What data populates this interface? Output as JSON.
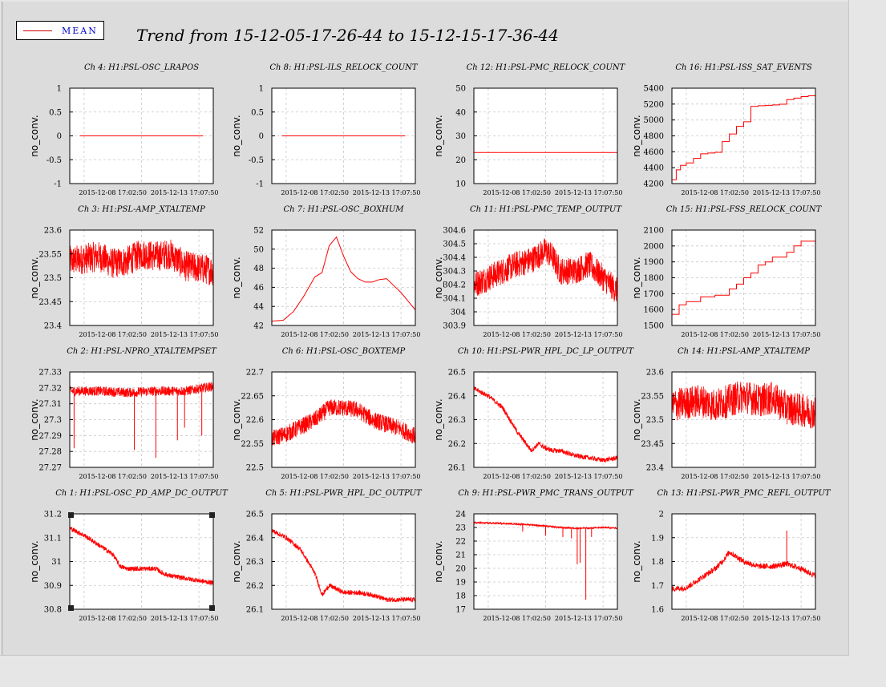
{
  "title": "Trend from 15-12-05-17-26-44 to 15-12-15-17-36-44",
  "legend": {
    "label": "MEAN"
  },
  "colors": {
    "series": "#ff0000",
    "grid": "#c8c8c8",
    "frame": "#000000"
  },
  "chart_data": [
    {
      "type": "line",
      "title": "Ch 4: H1:PSL-OSC_LRAPOS",
      "ylabel": "no_conv.",
      "ylim": [
        -1,
        1
      ],
      "yticks": [
        "1",
        "0.5",
        "0",
        "-0.5",
        "-1"
      ],
      "xticks": [
        "2015-12-08 17:02:50",
        "2015-12-13 17:07:50"
      ],
      "series": [
        {
          "name": "MEAN",
          "x": [
            0.07,
            0.93
          ],
          "y": [
            0,
            0
          ]
        }
      ],
      "style": "flat"
    },
    {
      "type": "line",
      "title": "Ch 8: H1:PSL-ILS_RELOCK_COUNT",
      "ylabel": "no_conv.",
      "ylim": [
        -1,
        1
      ],
      "yticks": [
        "1",
        "0.5",
        "0",
        "-0.5",
        "-1"
      ],
      "xticks": [
        "2015-12-08 17:02:50",
        "2015-12-13 17:07:50"
      ],
      "series": [
        {
          "name": "MEAN",
          "x": [
            0.07,
            0.93
          ],
          "y": [
            0,
            0
          ]
        }
      ],
      "style": "flat"
    },
    {
      "type": "line",
      "title": "Ch 12: H1:PSL-PMC_RELOCK_COUNT",
      "ylabel": "no_conv.",
      "ylim": [
        10,
        50
      ],
      "yticks": [
        "50",
        "40",
        "30",
        "20",
        "10"
      ],
      "xticks": [
        "2015-12-08 17:02:50",
        "2015-12-13 17:07:50"
      ],
      "series": [
        {
          "name": "MEAN",
          "x": [
            0,
            1
          ],
          "y": [
            23,
            23
          ]
        }
      ],
      "style": "flat"
    },
    {
      "type": "line",
      "title": "Ch 16: H1:PSL-ISS_SAT_EVENTS",
      "ylabel": "no_conv.",
      "ylim": [
        4150,
        5400
      ],
      "yticks": [
        "5400",
        "5200",
        "5000",
        "4800",
        "4600",
        "4400",
        "4200"
      ],
      "xticks": [
        "2015-12-08 17:02:50",
        "2015-12-13 17:07:50"
      ],
      "series": [
        {
          "name": "MEAN",
          "x": [
            0,
            0.03,
            0.06,
            0.1,
            0.15,
            0.2,
            0.25,
            0.3,
            0.35,
            0.4,
            0.45,
            0.5,
            0.55,
            0.6,
            0.65,
            0.7,
            0.75,
            0.8,
            0.85,
            0.9,
            0.95,
            1
          ],
          "y": [
            4200,
            4330,
            4390,
            4420,
            4480,
            4540,
            4550,
            4560,
            4700,
            4800,
            4900,
            4960,
            5160,
            5170,
            5175,
            5180,
            5190,
            5250,
            5270,
            5290,
            5300,
            5320
          ]
        }
      ],
      "style": "step"
    },
    {
      "type": "line",
      "title": "Ch 3: H1:PSL-AMP_XTALTEMP",
      "ylabel": "no_conv.",
      "ylim": [
        23.4,
        23.6
      ],
      "yticks": [
        "23.6",
        "23.55",
        "23.5",
        "23.45",
        "23.4"
      ],
      "xticks": [
        "2015-12-08 17:02:50",
        "2015-12-13 17:07:50"
      ],
      "series": [
        {
          "name": "MEAN",
          "x": [
            0,
            0.1,
            0.2,
            0.3,
            0.4,
            0.5,
            0.6,
            0.7,
            0.8,
            0.9,
            1
          ],
          "y": [
            23.535,
            23.54,
            23.545,
            23.53,
            23.535,
            23.55,
            23.545,
            23.55,
            23.525,
            23.52,
            23.515
          ],
          "noise": 0.032
        }
      ],
      "style": "noisy"
    },
    {
      "type": "line",
      "title": "Ch 7: H1:PSL-OSC_BOXHUM",
      "ylabel": "no_conv.",
      "ylim": [
        41,
        52
      ],
      "yticks": [
        "52",
        "50",
        "48",
        "46",
        "44",
        "42"
      ],
      "xticks": [
        "2015-12-08 17:02:50",
        "2015-12-13 17:07:50"
      ],
      "series": [
        {
          "name": "MEAN",
          "x": [
            0,
            0.08,
            0.15,
            0.22,
            0.3,
            0.35,
            0.4,
            0.45,
            0.5,
            0.55,
            0.6,
            0.65,
            0.7,
            0.75,
            0.8,
            0.85,
            0.9,
            0.95,
            1
          ],
          "y": [
            41.5,
            41.6,
            42.6,
            44.3,
            46.6,
            47.1,
            50.2,
            51.2,
            49.0,
            47.2,
            46.4,
            46.0,
            46.0,
            46.3,
            46.4,
            45.6,
            44.8,
            43.8,
            42.8
          ]
        }
      ],
      "style": "smooth"
    },
    {
      "type": "line",
      "title": "Ch 11: H1:PSL-PMC_TEMP_OUTPUT",
      "ylabel": "no_conv.",
      "ylim": [
        303.9,
        304.6
      ],
      "yticks": [
        "304.6",
        "304.5",
        "304.4",
        "304.3",
        "304.2",
        "304.1",
        "304",
        "303.9"
      ],
      "xticks": [
        "2015-12-08 17:02:50",
        "2015-12-13 17:07:50"
      ],
      "series": [
        {
          "name": "MEAN",
          "x": [
            0,
            0.1,
            0.2,
            0.3,
            0.4,
            0.5,
            0.55,
            0.6,
            0.7,
            0.8,
            0.9,
            1
          ],
          "y": [
            304.2,
            304.25,
            304.3,
            304.35,
            304.38,
            304.45,
            304.4,
            304.3,
            304.3,
            304.35,
            304.25,
            304.15
          ],
          "noise": 0.1
        }
      ],
      "style": "noisy"
    },
    {
      "type": "line",
      "title": "Ch 15: H1:PSL-FSS_RELOCK_COUNT",
      "ylabel": "no_conv.",
      "ylim": [
        1500,
        2100
      ],
      "yticks": [
        "2100",
        "2000",
        "1900",
        "1800",
        "1700",
        "1600",
        "1500"
      ],
      "xticks": [
        "2015-12-08 17:02:50",
        "2015-12-13 17:07:50"
      ],
      "series": [
        {
          "name": "MEAN",
          "x": [
            0,
            0.05,
            0.1,
            0.2,
            0.3,
            0.4,
            0.45,
            0.5,
            0.55,
            0.6,
            0.65,
            0.7,
            0.8,
            0.85,
            0.9,
            1
          ],
          "y": [
            1570,
            1630,
            1650,
            1680,
            1690,
            1730,
            1760,
            1800,
            1830,
            1880,
            1900,
            1930,
            1960,
            2000,
            2030,
            2045
          ]
        }
      ],
      "style": "step"
    },
    {
      "type": "line",
      "title": "Ch 2: H1:PSL-NPRO_XTALTEMPSET",
      "ylabel": "no_conv.",
      "ylim": [
        27.27,
        27.33
      ],
      "yticks": [
        "27.33",
        "27.32",
        "27.31",
        "27.3",
        "27.29",
        "27.28",
        "27.27"
      ],
      "xticks": [
        "2015-12-08 17:02:50",
        "2015-12-13 17:07:50"
      ],
      "series": [
        {
          "name": "MEAN",
          "x": [
            0,
            0.2,
            0.4,
            0.6,
            0.8,
            1
          ],
          "y": [
            27.318,
            27.318,
            27.317,
            27.318,
            27.318,
            27.321
          ],
          "noise": 0.003,
          "spikes": [
            [
              0.03,
              27.282
            ],
            [
              0.45,
              27.281
            ],
            [
              0.6,
              27.276
            ],
            [
              0.75,
              27.287
            ],
            [
              0.8,
              27.295
            ],
            [
              0.92,
              27.29
            ]
          ]
        }
      ],
      "style": "noisy"
    },
    {
      "type": "line",
      "title": "Ch 6: H1:PSL-OSC_BOXTEMP",
      "ylabel": "no_conv.",
      "ylim": [
        22.5,
        22.7
      ],
      "yticks": [
        "22.7",
        "22.65",
        "22.6",
        "22.55",
        "22.5"
      ],
      "xticks": [
        "2015-12-08 17:02:50",
        "2015-12-13 17:07:50"
      ],
      "series": [
        {
          "name": "MEAN",
          "x": [
            0,
            0.1,
            0.2,
            0.3,
            0.4,
            0.5,
            0.6,
            0.7,
            0.8,
            0.9,
            1
          ],
          "y": [
            22.56,
            22.57,
            22.585,
            22.6,
            22.625,
            22.625,
            22.62,
            22.6,
            22.59,
            22.58,
            22.565
          ],
          "noise": 0.018
        }
      ],
      "style": "noisy"
    },
    {
      "type": "line",
      "title": "Ch 10: H1:PSL-PWR_HPL_DC_LP_OUTPUT",
      "ylabel": "no_conv.",
      "ylim": [
        26.1,
        26.5
      ],
      "yticks": [
        "26.5",
        "26.4",
        "26.3",
        "26.2",
        "26.1"
      ],
      "xticks": [
        "2015-12-08 17:02:50",
        "2015-12-13 17:07:50"
      ],
      "series": [
        {
          "name": "MEAN",
          "x": [
            0,
            0.1,
            0.2,
            0.3,
            0.4,
            0.45,
            0.5,
            0.55,
            0.6,
            0.7,
            0.8,
            0.9,
            1
          ],
          "y": [
            26.43,
            26.4,
            26.35,
            26.25,
            26.17,
            26.2,
            26.18,
            26.17,
            26.17,
            26.15,
            26.14,
            26.13,
            26.14
          ],
          "noise": 0.01
        }
      ],
      "style": "noisy"
    },
    {
      "type": "line",
      "title": "Ch 14: H1:PSL-AMP_XTALTEMP",
      "ylabel": "no_conv.",
      "ylim": [
        23.4,
        23.6
      ],
      "yticks": [
        "23.6",
        "23.55",
        "23.5",
        "23.45",
        "23.4"
      ],
      "xticks": [
        "2015-12-08 17:02:50",
        "2015-12-13 17:07:50"
      ],
      "series": [
        {
          "name": "MEAN",
          "x": [
            0,
            0.1,
            0.2,
            0.3,
            0.4,
            0.5,
            0.6,
            0.7,
            0.8,
            0.9,
            1
          ],
          "y": [
            23.53,
            23.535,
            23.54,
            23.53,
            23.54,
            23.55,
            23.54,
            23.545,
            23.525,
            23.52,
            23.515
          ],
          "noise": 0.035
        }
      ],
      "style": "noisy"
    },
    {
      "type": "line",
      "title": "Ch 1: H1:PSL-OSC_PD_AMP_DC_OUTPUT",
      "ylabel": "no_conv.",
      "ylim": [
        30.8,
        31.2
      ],
      "yticks": [
        "31.2",
        "31.1",
        "31",
        "30.9",
        "30.8"
      ],
      "xticks": [
        "2015-12-08 17:02:50",
        "2015-12-13 17:07:50"
      ],
      "series": [
        {
          "name": "MEAN",
          "x": [
            0,
            0.1,
            0.2,
            0.3,
            0.35,
            0.4,
            0.5,
            0.6,
            0.65,
            0.7,
            0.8,
            0.9,
            1
          ],
          "y": [
            31.14,
            31.11,
            31.07,
            31.03,
            30.98,
            30.97,
            30.97,
            30.97,
            30.95,
            30.94,
            30.93,
            30.92,
            30.91
          ],
          "noise": 0.01
        }
      ],
      "style": "noisy",
      "selected": true
    },
    {
      "type": "line",
      "title": "Ch 5: H1:PSL-PWR_HPL_DC_OUTPUT",
      "ylabel": "no_conv.",
      "ylim": [
        26.1,
        26.5
      ],
      "yticks": [
        "26.5",
        "26.4",
        "26.3",
        "26.2",
        "26.1"
      ],
      "xticks": [
        "2015-12-08 17:02:50",
        "2015-12-13 17:07:50"
      ],
      "series": [
        {
          "name": "MEAN",
          "x": [
            0,
            0.1,
            0.2,
            0.3,
            0.35,
            0.4,
            0.5,
            0.6,
            0.7,
            0.8,
            0.9,
            1
          ],
          "y": [
            26.43,
            26.4,
            26.35,
            26.25,
            26.16,
            26.2,
            26.17,
            26.17,
            26.16,
            26.14,
            26.14,
            26.14
          ],
          "noise": 0.01
        }
      ],
      "style": "noisy"
    },
    {
      "type": "line",
      "title": "Ch 9: H1:PSL-PWR_PMC_TRANS_OUTPUT",
      "ylabel": "no_conv.",
      "ylim": [
        17,
        24
      ],
      "yticks": [
        "24",
        "23",
        "22",
        "21",
        "20",
        "19",
        "18",
        "17"
      ],
      "xticks": [
        "2015-12-08 17:02:50",
        "2015-12-13 17:07:50"
      ],
      "series": [
        {
          "name": "MEAN",
          "x": [
            0,
            0.2,
            0.4,
            0.5,
            0.6,
            0.7,
            0.8,
            0.9,
            1
          ],
          "y": [
            23.35,
            23.3,
            23.2,
            23.1,
            23.0,
            22.95,
            22.95,
            23.0,
            22.95
          ],
          "noise": 0.06,
          "spikes": [
            [
              0.34,
              22.7
            ],
            [
              0.5,
              22.4
            ],
            [
              0.62,
              22.3
            ],
            [
              0.68,
              22.2
            ],
            [
              0.72,
              20.3
            ],
            [
              0.74,
              20.4
            ],
            [
              0.78,
              17.7
            ],
            [
              0.82,
              22.3
            ]
          ]
        }
      ],
      "style": "noisy"
    },
    {
      "type": "line",
      "title": "Ch 13: H1:PSL-PWR_PMC_REFL_OUTPUT",
      "ylabel": "no_conv.",
      "ylim": [
        1.6,
        2
      ],
      "yticks": [
        "2",
        "1.9",
        "1.8",
        "1.7",
        "1.6"
      ],
      "xticks": [
        "2015-12-08 17:02:50",
        "2015-12-13 17:07:50"
      ],
      "series": [
        {
          "name": "MEAN",
          "x": [
            0,
            0.1,
            0.2,
            0.3,
            0.35,
            0.4,
            0.5,
            0.6,
            0.7,
            0.8,
            0.9,
            1
          ],
          "y": [
            1.685,
            1.69,
            1.73,
            1.77,
            1.8,
            1.84,
            1.8,
            1.78,
            1.78,
            1.79,
            1.77,
            1.74
          ],
          "noise": 0.012,
          "spikes": [
            [
              0.8,
              1.93
            ]
          ]
        }
      ],
      "style": "noisy"
    }
  ]
}
